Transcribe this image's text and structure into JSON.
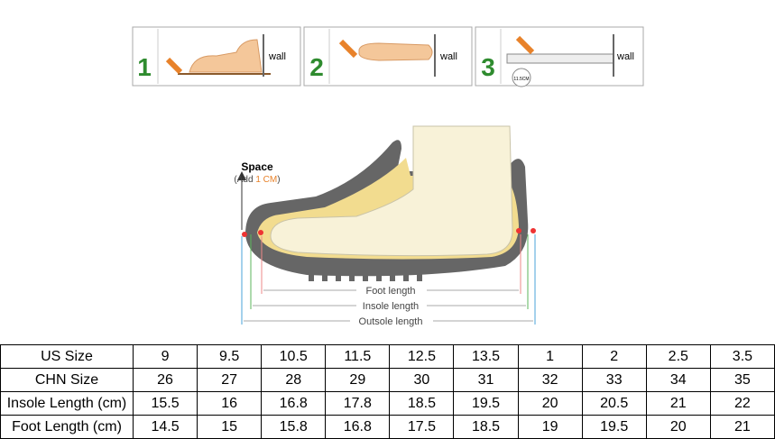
{
  "steps": [
    {
      "number": "1",
      "wall": "wall"
    },
    {
      "number": "2",
      "wall": "wall"
    },
    {
      "number": "3",
      "wall": "wall",
      "measure": "11.5CM"
    }
  ],
  "diagram": {
    "space": "Space",
    "add_prefix": "(Add",
    "add_value": "1 CM",
    "add_suffix": ")",
    "foot_length": "Foot length",
    "insole_length": "Insole length",
    "outsole_length": "Outsole length"
  },
  "table": {
    "rows": [
      [
        "US Size",
        9,
        9.5,
        10.5,
        11.5,
        12.5,
        13.5,
        1,
        2,
        2.5,
        3.5
      ],
      [
        "CHN Size",
        26,
        27,
        28,
        29,
        30,
        31,
        32,
        33,
        34,
        35
      ],
      [
        "Insole Length (cm)",
        15.5,
        16,
        16.8,
        17.8,
        18.5,
        19.5,
        20,
        20.5,
        21,
        22
      ],
      [
        "Foot Length (cm)",
        14.5,
        15,
        15.8,
        16.8,
        17.5,
        18.5,
        19,
        19.5,
        20,
        21
      ]
    ]
  }
}
